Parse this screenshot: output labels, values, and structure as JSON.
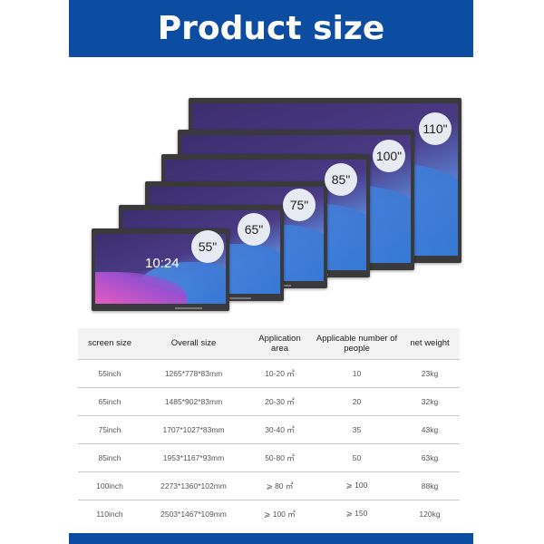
{
  "header": {
    "title": "Product size"
  },
  "screens": [
    {
      "label": "110\""
    },
    {
      "label": "100\""
    },
    {
      "label": "85\""
    },
    {
      "label": "75\""
    },
    {
      "label": "65\""
    },
    {
      "label": "55\""
    }
  ],
  "clock": "10:24",
  "table": {
    "headers": [
      "screen size",
      "Overall size",
      "Application area",
      "Applicable number of people",
      "net weight"
    ],
    "rows": [
      [
        "55inch",
        "1265*778*83mm",
        "10-20 ㎡",
        "10",
        "23kg"
      ],
      [
        "65inch",
        "1485*902*83mm",
        "20-30 ㎡",
        "20",
        "32kg"
      ],
      [
        "75inch",
        "1707*1027*83mm",
        "30-40 ㎡",
        "35",
        "43kg"
      ],
      [
        "85inch",
        "1953*1167*93mm",
        "50-80 ㎡",
        "50",
        "63kg"
      ],
      [
        "100inch",
        "2273*1360*102mm",
        "⩾ 80 ㎡",
        "⩾ 100",
        "88kg"
      ],
      [
        "110inch",
        "2503*1467*109mm",
        "⩾ 100 ㎡",
        "⩾ 150",
        "120kg"
      ]
    ]
  },
  "colors": {
    "brand": "#0c4da2"
  }
}
